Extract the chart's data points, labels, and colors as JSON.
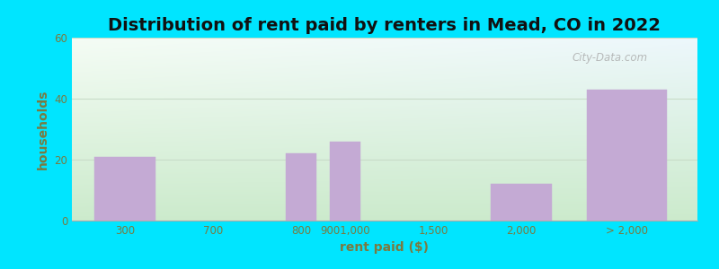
{
  "title": "Distribution of rent paid by renters in Mead, CO in 2022",
  "xlabel": "rent paid ($)",
  "ylabel": "households",
  "bar_labels": [
    "300",
    "700",
    "800",
    "9001,000",
    "1,500",
    "2,000",
    "> 2,000"
  ],
  "bar_positions": [
    0.5,
    1.5,
    2.5,
    3.0,
    4.0,
    5.0,
    6.2
  ],
  "bar_values": [
    21,
    0,
    22,
    26,
    0,
    12,
    43
  ],
  "bar_widths": [
    0.7,
    0.7,
    0.35,
    0.35,
    0.7,
    0.7,
    0.9
  ],
  "bar_color": "#c4aad4",
  "bar_edge_color": "#c4aad4",
  "ylim": [
    0,
    60
  ],
  "yticks": [
    0,
    20,
    40,
    60
  ],
  "xlim": [
    -0.1,
    7.0
  ],
  "background_outer": "#00e5ff",
  "bg_top_left": "#f5fcf5",
  "bg_bottom": "#ceeace",
  "bg_top_right": "#e8f4f8",
  "grid_color": "#c8dcc8",
  "title_fontsize": 14,
  "axis_label_fontsize": 10,
  "tick_fontsize": 8.5,
  "tick_label_color": "#7a7a40",
  "axis_label_color": "#7a7a40",
  "title_color": "#111111",
  "watermark_text": "City-Data.com",
  "tick_label_positions": [
    0.5,
    1.5,
    2.5,
    3.0,
    4.0,
    5.0,
    6.2
  ]
}
